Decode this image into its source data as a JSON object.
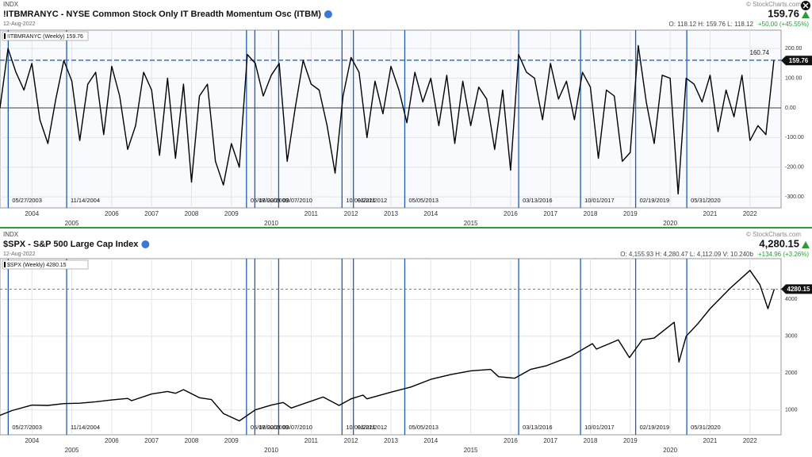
{
  "events": [
    "05/27/2003",
    "11/14/2004",
    "05/17/2009",
    "08/02/2009",
    "03/07/2010",
    "10/09/2011",
    "01/22/2012",
    "05/05/2013",
    "03/13/2016",
    "10/01/2017",
    "02/19/2019",
    "05/31/2020"
  ],
  "chart_data": [
    {
      "type": "line",
      "exchange": "INDX",
      "title": "!ITBMRANYC - NYSE Common Stock Only IT Breadth Momentum Osc (ITBM)",
      "date": "12-Aug-2022",
      "copyright": "© StockCharts.com",
      "last": 159.76,
      "quote": "O: 118.12   H: 159.76   L: 118.12",
      "change": "+50.00 (+45.55%)",
      "legend": "!ITBMRANYC (Weekly) 159.76",
      "last_box": "159.76",
      "ref_line": 160.74,
      "ref_label": "160.74",
      "zero_line": 0,
      "xlim": [
        2003.2,
        2022.78
      ],
      "xticks": [
        2004,
        2005,
        2006,
        2007,
        2008,
        2009,
        2010,
        2011,
        2012,
        2013,
        2014,
        2015,
        2016,
        2017,
        2018,
        2019,
        2020,
        2021,
        2022
      ],
      "ylim": [
        -337,
        262
      ],
      "yticks": [
        {
          "value": 200,
          "label": "200.00"
        },
        {
          "value": 100,
          "label": "100.00"
        },
        {
          "value": 0,
          "label": "0.00"
        },
        {
          "value": -100,
          "label": "-100.00"
        },
        {
          "value": -200,
          "label": "-200.00"
        },
        {
          "value": -300,
          "label": "-300.00"
        }
      ],
      "grid": true,
      "x": [
        2003.2,
        2003.4,
        2003.6,
        2003.8,
        2004.0,
        2004.2,
        2004.4,
        2004.6,
        2004.8,
        2005.0,
        2005.2,
        2005.4,
        2005.6,
        2005.8,
        2006.0,
        2006.2,
        2006.4,
        2006.6,
        2006.8,
        2007.0,
        2007.2,
        2007.4,
        2007.6,
        2007.8,
        2008.0,
        2008.2,
        2008.4,
        2008.6,
        2008.8,
        2009.0,
        2009.2,
        2009.4,
        2009.6,
        2009.8,
        2010.0,
        2010.2,
        2010.4,
        2010.6,
        2010.8,
        2011.0,
        2011.2,
        2011.4,
        2011.6,
        2011.8,
        2012.0,
        2012.2,
        2012.4,
        2012.6,
        2012.8,
        2013.0,
        2013.2,
        2013.4,
        2013.6,
        2013.8,
        2014.0,
        2014.2,
        2014.4,
        2014.6,
        2014.8,
        2015.0,
        2015.2,
        2015.4,
        2015.6,
        2015.8,
        2016.0,
        2016.2,
        2016.4,
        2016.6,
        2016.8,
        2017.0,
        2017.2,
        2017.4,
        2017.6,
        2017.8,
        2018.0,
        2018.2,
        2018.4,
        2018.6,
        2018.8,
        2019.0,
        2019.2,
        2019.4,
        2019.6,
        2019.8,
        2020.0,
        2020.2,
        2020.4,
        2020.6,
        2020.8,
        2021.0,
        2021.2,
        2021.4,
        2021.6,
        2021.8,
        2022.0,
        2022.2,
        2022.4,
        2022.6
      ],
      "series": [
        {
          "name": "!ITBMRANYC",
          "color": "#000000",
          "values": [
            0,
            200,
            120,
            60,
            150,
            -40,
            -120,
            30,
            160,
            90,
            -110,
            80,
            120,
            -90,
            140,
            40,
            -140,
            -60,
            120,
            60,
            -160,
            100,
            -170,
            80,
            -250,
            40,
            80,
            -180,
            -260,
            -120,
            -200,
            180,
            150,
            40,
            110,
            150,
            -180,
            0,
            160,
            80,
            60,
            -60,
            -220,
            40,
            170,
            120,
            -100,
            90,
            -20,
            140,
            60,
            -50,
            120,
            20,
            100,
            -60,
            110,
            -120,
            90,
            -60,
            70,
            30,
            -140,
            60,
            -210,
            180,
            120,
            100,
            -40,
            150,
            30,
            90,
            -40,
            120,
            70,
            -170,
            60,
            40,
            -180,
            -150,
            210,
            20,
            -120,
            110,
            100,
            -290,
            100,
            80,
            20,
            110,
            -80,
            60,
            -30,
            110,
            -110,
            -60,
            -90,
            159.76
          ]
        }
      ]
    },
    {
      "type": "line",
      "exchange": "INDX",
      "title": "$SPX - S&P 500 Large Cap Index",
      "date": "12-Aug-2022",
      "copyright": "© StockCharts.com",
      "last": "4,280.15",
      "quote": "O: 4,155.93   H: 4,280.47   L: 4,112.09   V: 10.240b",
      "change": "+134.96 (+3.26%)",
      "legend": "$SPX (Weekly) 4280.15",
      "last_box": "4280.15",
      "ref_line": 4280.15,
      "xlim": [
        2003.2,
        2022.78
      ],
      "xticks": [
        2004,
        2005,
        2006,
        2007,
        2008,
        2009,
        2010,
        2011,
        2012,
        2013,
        2014,
        2015,
        2016,
        2017,
        2018,
        2019,
        2020,
        2021,
        2022
      ],
      "ylim": [
        323,
        5108
      ],
      "yticks": [
        4000,
        3000,
        2000,
        1000
      ],
      "grid": true,
      "x": [
        2003.2,
        2003.5,
        2004.0,
        2004.4,
        2004.8,
        2005.2,
        2005.6,
        2006.0,
        2006.4,
        2006.5,
        2007.0,
        2007.4,
        2007.6,
        2007.8,
        2008.2,
        2008.5,
        2008.8,
        2008.9,
        2009.2,
        2009.6,
        2010.0,
        2010.3,
        2010.5,
        2010.9,
        2011.3,
        2011.7,
        2012.0,
        2012.3,
        2012.4,
        2013.0,
        2013.5,
        2014.0,
        2014.5,
        2015.0,
        2015.5,
        2015.7,
        2016.1,
        2016.5,
        2016.9,
        2017.5,
        2018.05,
        2018.15,
        2018.7,
        2018.98,
        2019.3,
        2019.6,
        2020.1,
        2020.22,
        2020.4,
        2020.7,
        2021.0,
        2021.5,
        2022.0,
        2022.25,
        2022.45,
        2022.61
      ],
      "series": [
        {
          "name": "$SPX",
          "color": "#000000",
          "values": [
            850,
            980,
            1130,
            1120,
            1170,
            1180,
            1220,
            1270,
            1310,
            1250,
            1430,
            1500,
            1450,
            1550,
            1330,
            1280,
            900,
            850,
            700,
            1000,
            1130,
            1200,
            1050,
            1200,
            1350,
            1120,
            1300,
            1400,
            1300,
            1480,
            1620,
            1830,
            1960,
            2060,
            2100,
            1900,
            1860,
            2100,
            2200,
            2450,
            2800,
            2650,
            2900,
            2420,
            2900,
            2950,
            3380,
            2300,
            3000,
            3350,
            3750,
            4300,
            4790,
            4400,
            3750,
            4280.15
          ]
        }
      ]
    }
  ]
}
